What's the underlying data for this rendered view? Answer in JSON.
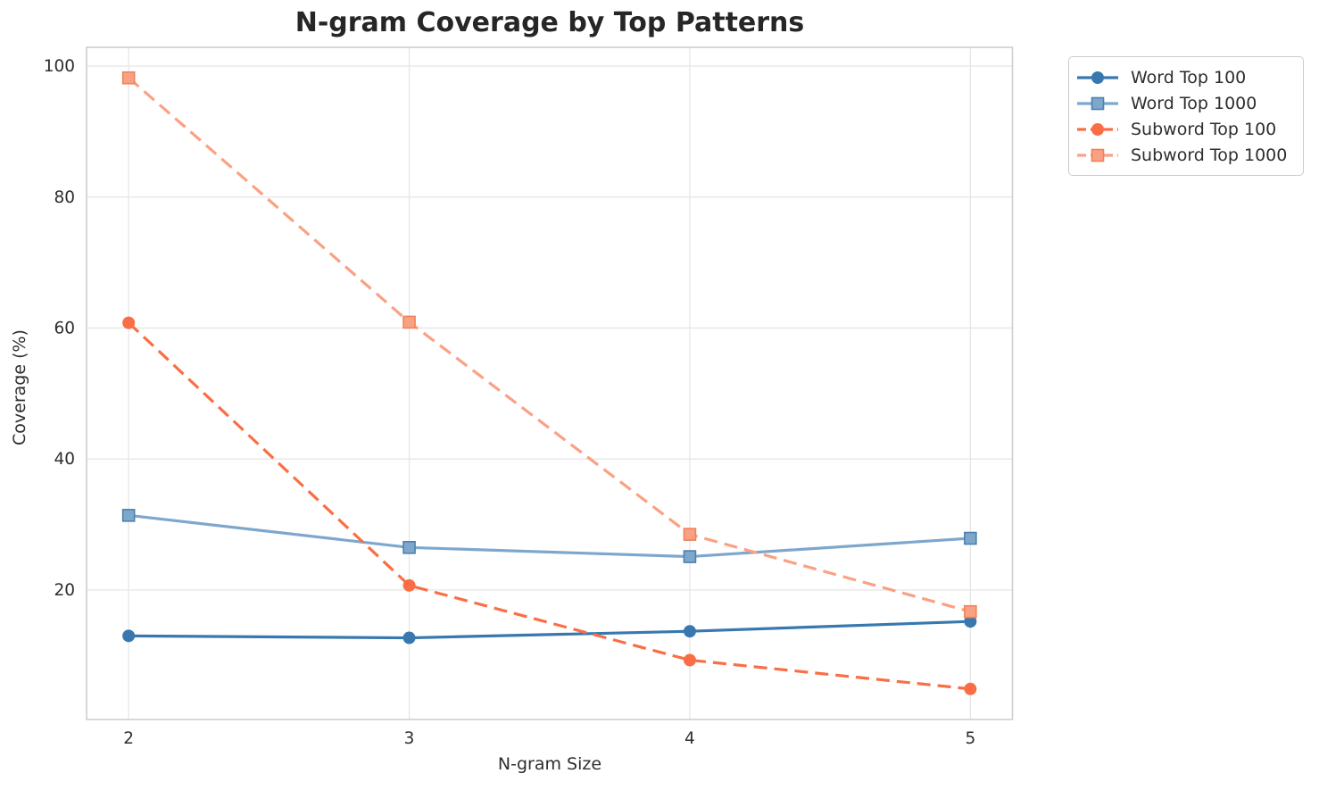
{
  "chart_data": {
    "type": "line",
    "title": "N-gram Coverage by Top Patterns",
    "xlabel": "N-gram Size",
    "ylabel": "Coverage (%)",
    "x": [
      2,
      3,
      4,
      5
    ],
    "x_tick_labels": [
      "2",
      "3",
      "4",
      "5"
    ],
    "y_ticks": [
      20,
      40,
      60,
      80,
      100
    ],
    "y_tick_labels": [
      "20",
      "40",
      "60",
      "80",
      "100"
    ],
    "xlim": [
      1.85,
      5.15
    ],
    "ylim": [
      0.235,
      102.865
    ],
    "grid": true,
    "legend_position": "outside-upper-right",
    "series": [
      {
        "name": "Word Top 100",
        "values": [
          13.0,
          12.7,
          13.7,
          15.2
        ],
        "color": "#3878af",
        "marker": "circle",
        "linestyle": "solid"
      },
      {
        "name": "Word Top 1000",
        "values": [
          31.4,
          26.5,
          25.1,
          27.9
        ],
        "color": "#7ea7cd",
        "marker": "square",
        "marker_edge_color": "#4d80ad",
        "linestyle": "solid"
      },
      {
        "name": "Subword Top 100",
        "values": [
          60.8,
          20.7,
          9.3,
          4.9
        ],
        "color": "#fa6e45",
        "marker": "circle",
        "linestyle": "dashed"
      },
      {
        "name": "Subword Top 1000",
        "values": [
          98.2,
          60.9,
          28.5,
          16.7
        ],
        "color": "#fba183",
        "marker": "square",
        "marker_edge_color": "#f0815a",
        "linestyle": "dashed"
      }
    ]
  },
  "colors": {
    "background": "#ffffff",
    "grid": "#e8e8e8",
    "spine": "#cccccc",
    "title_text": "#262626",
    "tick_text": "#2e2e2e",
    "axis_label_text": "#2e2e2e",
    "legend_border": "#cccccc",
    "legend_text": "#2e2e2e"
  }
}
